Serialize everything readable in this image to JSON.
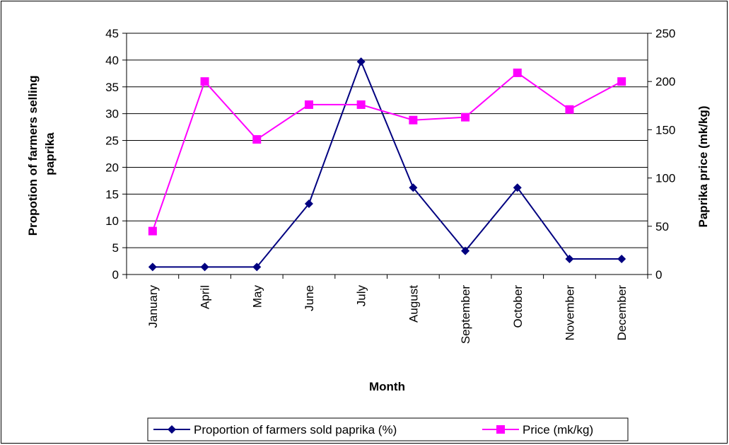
{
  "chart_data": {
    "type": "line",
    "title": "",
    "xlabel": "Month",
    "ylabel_left": "Propotion of farmers selling paprika",
    "ylabel_left_lines": [
      "Propotion of farmers selling",
      "paprika"
    ],
    "ylabel_right": "Paprika price (mk/kg)",
    "categories": [
      "January",
      "April",
      "May",
      "June",
      "July",
      "August",
      "September",
      "October",
      "November",
      "December"
    ],
    "ylim_left": [
      0,
      45
    ],
    "yticks_left": [
      "0",
      "5",
      "10",
      "15",
      "20",
      "25",
      "30",
      "35",
      "40",
      "45"
    ],
    "ylim_right": [
      0,
      250
    ],
    "yticks_right": [
      "0",
      "50",
      "100",
      "150",
      "200",
      "250"
    ],
    "grid": true,
    "legend_position": "bottom",
    "series": [
      {
        "name": "Proportion of farmers sold paprika (%)",
        "axis": "left",
        "color": "#000080",
        "marker": "diamond",
        "values": [
          1.4,
          1.4,
          1.4,
          13.2,
          39.7,
          16.2,
          4.4,
          16.2,
          2.9,
          2.9
        ]
      },
      {
        "name": "Price (mk/kg)",
        "axis": "right",
        "color": "#ff00ff",
        "marker": "square",
        "values": [
          45,
          200,
          140,
          176,
          176,
          160,
          163,
          209,
          171,
          200
        ]
      }
    ]
  }
}
